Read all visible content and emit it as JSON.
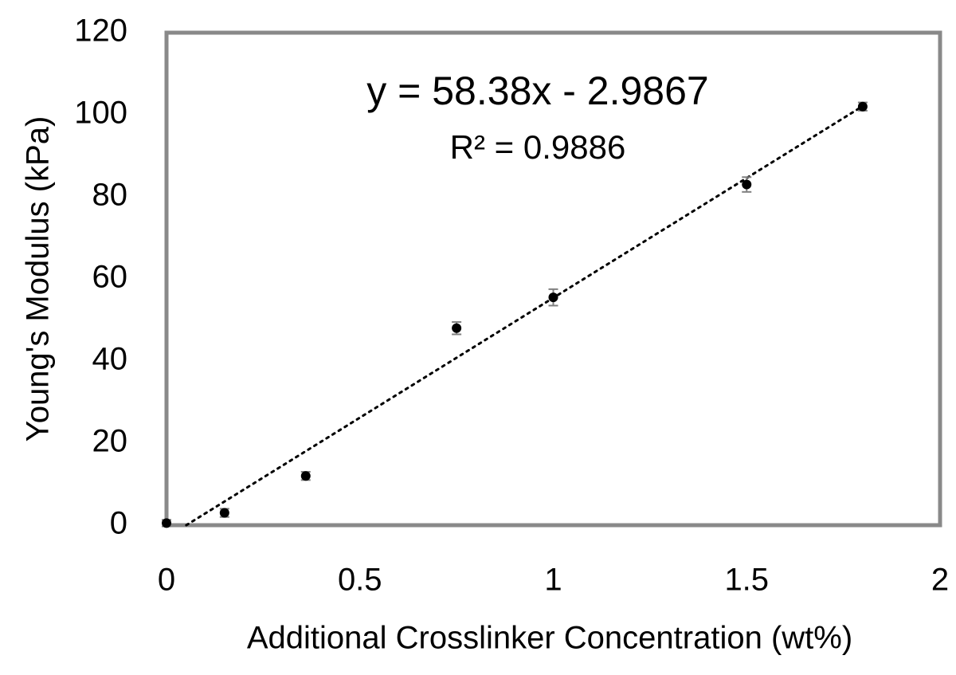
{
  "chart_data": {
    "type": "scatter",
    "x_label": "Additional Crosslinker Concentration (wt%)",
    "y_label": "Young's Modulus (kPa)",
    "x": [
      0,
      0.15,
      0.36,
      0.75,
      1.0,
      1.5,
      1.8
    ],
    "y": [
      0.5,
      3,
      12,
      48,
      55.5,
      83,
      102
    ],
    "errors": [
      0.8,
      1,
      1,
      1.5,
      2,
      1.8,
      1
    ],
    "color": "#000000",
    "error_color": "#808080",
    "xlim": [
      0,
      2
    ],
    "xticks": [
      0,
      0.5,
      1,
      1.5,
      2
    ],
    "ylim": [
      0,
      120
    ],
    "yticks": [
      0,
      20,
      40,
      60,
      80,
      100,
      120
    ],
    "grid": false,
    "trendline": {
      "label": "y = 58.38x - 2.9867",
      "slope": 58.38,
      "intercept": -2.9867,
      "r2_label": "R² = 0.9886"
    }
  }
}
